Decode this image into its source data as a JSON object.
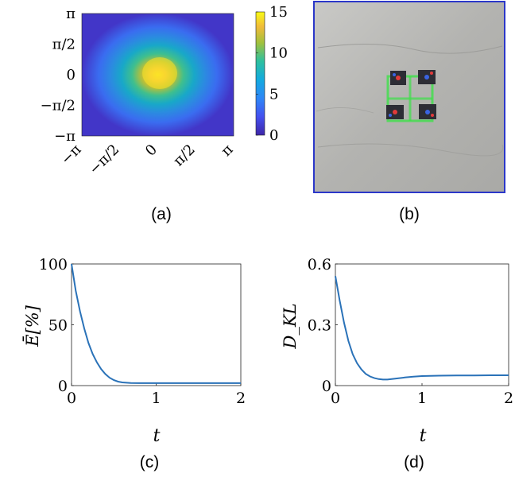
{
  "colors": {
    "line": "#2a72b8",
    "photo_border": "#2b37c9",
    "floor": "#b5b5b3",
    "robot_marker": "#3ee04a"
  },
  "panels": {
    "a": {
      "caption": "(a)"
    },
    "b": {
      "caption": "(b)"
    },
    "c": {
      "caption": "(c)"
    },
    "d": {
      "caption": "(d)"
    }
  },
  "chart_data": [
    {
      "id": "a",
      "type": "heatmap",
      "title": "",
      "xlabel": "",
      "ylabel": "",
      "x_ticks": [
        "−π",
        "−π/2",
        "0",
        "π/2",
        "π"
      ],
      "y_ticks": [
        "π",
        "π/2",
        "0",
        "−π/2",
        "−π"
      ],
      "colorbar": {
        "min": 0,
        "max": 15,
        "ticks": [
          "15",
          "10",
          "5",
          "0"
        ],
        "colormap": "parula"
      },
      "peak": {
        "x": 0,
        "y": 0,
        "value": 14.5
      },
      "description_kind": "gaussian-like centered distribution"
    },
    {
      "id": "c",
      "type": "line",
      "xlabel": "t",
      "ylabel": "Ē[%]",
      "xlim": [
        0,
        2
      ],
      "ylim": [
        0,
        100
      ],
      "x_ticks": [
        "0",
        "1",
        "2"
      ],
      "y_ticks": [
        "100",
        "50",
        "0"
      ],
      "series": [
        {
          "x": [
            0,
            0.05,
            0.1,
            0.15,
            0.2,
            0.25,
            0.3,
            0.35,
            0.4,
            0.45,
            0.5,
            0.55,
            0.6,
            0.7,
            0.8,
            0.9,
            1.0,
            1.2,
            1.4,
            1.6,
            1.8,
            2.0
          ],
          "y": [
            100,
            78,
            61,
            47,
            35,
            26,
            19,
            13.5,
            9.5,
            6.5,
            4.5,
            3.3,
            2.6,
            2.1,
            2.0,
            2.0,
            2.0,
            2.0,
            2.0,
            2.0,
            2.0,
            2.0
          ]
        }
      ]
    },
    {
      "id": "d",
      "type": "line",
      "xlabel": "t",
      "ylabel": "D_KL",
      "xlim": [
        0,
        2
      ],
      "ylim": [
        0,
        0.6
      ],
      "x_ticks": [
        "0",
        "1",
        "2"
      ],
      "y_ticks": [
        "0.6",
        "0.3",
        "0"
      ],
      "series": [
        {
          "x": [
            0,
            0.05,
            0.1,
            0.15,
            0.2,
            0.25,
            0.3,
            0.35,
            0.4,
            0.45,
            0.5,
            0.55,
            0.6,
            0.65,
            0.7,
            0.8,
            0.9,
            1.0,
            1.2,
            1.4,
            1.6,
            1.8,
            2.0
          ],
          "y": [
            0.54,
            0.42,
            0.31,
            0.22,
            0.155,
            0.11,
            0.08,
            0.058,
            0.045,
            0.037,
            0.032,
            0.03,
            0.03,
            0.032,
            0.035,
            0.04,
            0.044,
            0.047,
            0.049,
            0.05,
            0.05,
            0.051,
            0.051
          ]
        }
      ]
    }
  ]
}
